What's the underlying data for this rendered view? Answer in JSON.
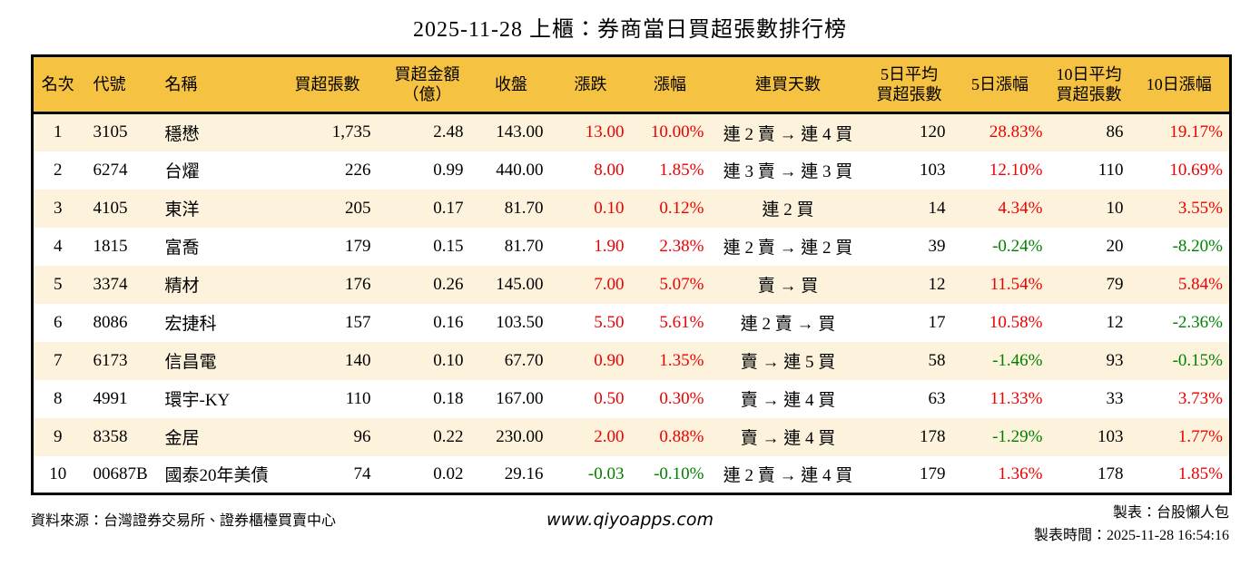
{
  "title": "2025-11-28 上櫃：券商當日買超張數排行榜",
  "colors": {
    "header_bg": "#f5c242",
    "row_alt": "#fdf3dc",
    "up": "#ee0000",
    "down": "#008000",
    "border": "#000000",
    "text": "#000000"
  },
  "table": {
    "columns": [
      {
        "key": "rank",
        "label": "名次"
      },
      {
        "key": "code",
        "label": "代號"
      },
      {
        "key": "name",
        "label": "名稱"
      },
      {
        "key": "net_buy",
        "label": "買超張數"
      },
      {
        "key": "amount",
        "label": "買超金額",
        "label2": "（億）"
      },
      {
        "key": "close",
        "label": "收盤"
      },
      {
        "key": "change",
        "label": "漲跌",
        "sign": true
      },
      {
        "key": "change_pct",
        "label": "漲幅",
        "sign": true
      },
      {
        "key": "streak",
        "label": "連買天數"
      },
      {
        "key": "avg5",
        "label": "5日平均",
        "label2": "買超張數"
      },
      {
        "key": "pct5",
        "label": "5日漲幅",
        "sign": true
      },
      {
        "key": "avg10",
        "label": "10日平均",
        "label2": "買超張數"
      },
      {
        "key": "pct10",
        "label": "10日漲幅",
        "sign": true
      }
    ],
    "rows": [
      [
        "1",
        "3105",
        "穩懋",
        "1,735",
        "2.48",
        "143.00",
        "13.00",
        "10.00%",
        "連 2 賣 → 連 4 買",
        "120",
        "28.83%",
        "86",
        "19.17%"
      ],
      [
        "2",
        "6274",
        "台燿",
        "226",
        "0.99",
        "440.00",
        "8.00",
        "1.85%",
        "連 3 賣 → 連 3 買",
        "103",
        "12.10%",
        "110",
        "10.69%"
      ],
      [
        "3",
        "4105",
        "東洋",
        "205",
        "0.17",
        "81.70",
        "0.10",
        "0.12%",
        "連 2 買",
        "14",
        "4.34%",
        "10",
        "3.55%"
      ],
      [
        "4",
        "1815",
        "富喬",
        "179",
        "0.15",
        "81.70",
        "1.90",
        "2.38%",
        "連 2 賣 → 連 2 買",
        "39",
        "-0.24%",
        "20",
        "-8.20%"
      ],
      [
        "5",
        "3374",
        "精材",
        "176",
        "0.26",
        "145.00",
        "7.00",
        "5.07%",
        "賣 → 買",
        "12",
        "11.54%",
        "79",
        "5.84%"
      ],
      [
        "6",
        "8086",
        "宏捷科",
        "157",
        "0.16",
        "103.50",
        "5.50",
        "5.61%",
        "連 2 賣 → 買",
        "17",
        "10.58%",
        "12",
        "-2.36%"
      ],
      [
        "7",
        "6173",
        "信昌電",
        "140",
        "0.10",
        "67.70",
        "0.90",
        "1.35%",
        "賣 → 連 5 買",
        "58",
        "-1.46%",
        "93",
        "-0.15%"
      ],
      [
        "8",
        "4991",
        "環宇-KY",
        "110",
        "0.18",
        "167.00",
        "0.50",
        "0.30%",
        "賣 → 連 4 買",
        "63",
        "11.33%",
        "33",
        "3.73%"
      ],
      [
        "9",
        "8358",
        "金居",
        "96",
        "0.22",
        "230.00",
        "2.00",
        "0.88%",
        "賣 → 連 4 買",
        "178",
        "-1.29%",
        "103",
        "1.77%"
      ],
      [
        "10",
        "00687B",
        "國泰20年美債",
        "74",
        "0.02",
        "29.16",
        "-0.03",
        "-0.10%",
        "連 2 賣 → 連 4 買",
        "179",
        "1.36%",
        "178",
        "1.85%"
      ]
    ]
  },
  "footer": {
    "source": "資料來源：台灣證券交易所、證券櫃檯買賣中心",
    "website": "www.qiyoapps.com",
    "author": "製表：台股懶人包",
    "timestamp": "製表時間：2025-11-28 16:54:16"
  }
}
